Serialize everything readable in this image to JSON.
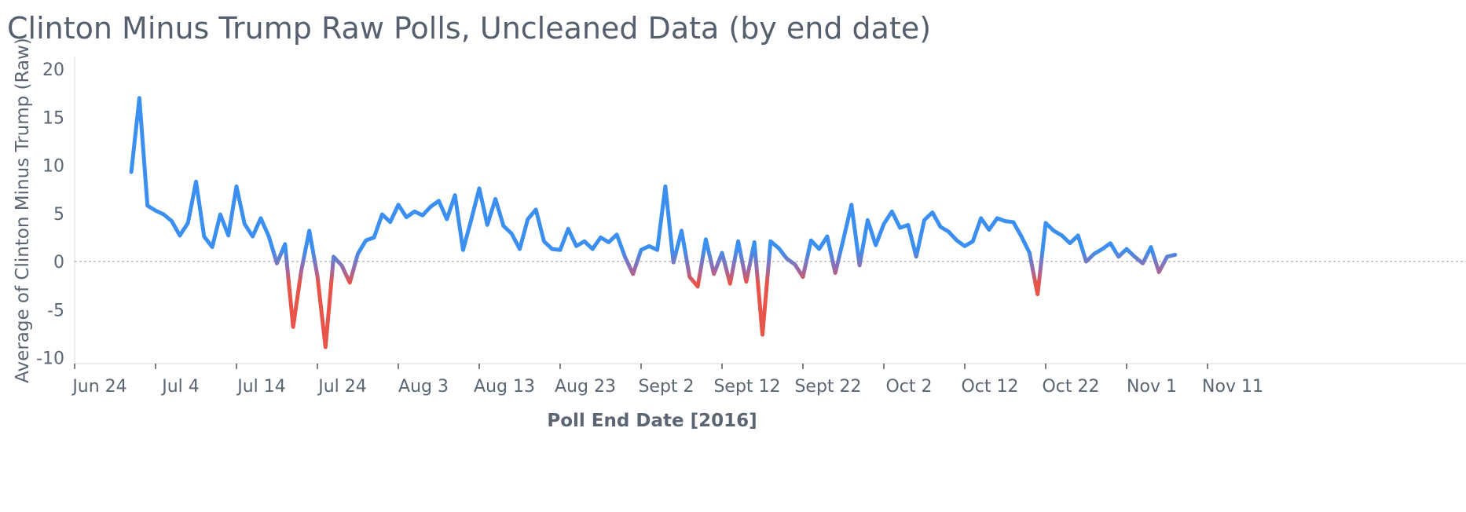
{
  "chart_data": {
    "type": "line",
    "title": "Clinton Minus Trump Raw Polls, Uncleaned Data (by end date)",
    "xlabel": "Poll End Date [2016]",
    "ylabel": "Average of Clinton Minus Trump (Raw)",
    "ylim": [
      -11,
      21
    ],
    "y_ticks": [
      20,
      15,
      10,
      5,
      0,
      -5,
      -10
    ],
    "y_tick_labels": [
      "20",
      "15",
      "10",
      "5",
      "0",
      "-5",
      "-10"
    ],
    "xlim": [
      "2016-06-21",
      "2016-11-12"
    ],
    "x_ticks": [
      "2016-06-24",
      "2016-07-04",
      "2016-07-14",
      "2016-07-24",
      "2016-08-03",
      "2016-08-13",
      "2016-08-23",
      "2016-09-02",
      "2016-09-12",
      "2016-09-22",
      "2016-10-02",
      "2016-10-12",
      "2016-10-22",
      "2016-11-01",
      "2016-11-11"
    ],
    "x_tick_labels": [
      "Jun 24",
      "Jul 4",
      "Jul 14",
      "Jul 24",
      "Aug 3",
      "Aug 13",
      "Aug 23",
      "Sept 2",
      "Sept 12",
      "Sept 22",
      "Oct 2",
      "Oct 12",
      "Oct 22",
      "Nov 1",
      "Nov 11"
    ],
    "reference_line": 0,
    "grid": false,
    "colors": {
      "positive": "#3b8ff0",
      "negative": "#e8544a",
      "axis": "#d8d8d8",
      "zero_line": "#9a9a9a",
      "text": "#5b6573"
    },
    "series": [
      {
        "points": [
          [
            "2016-07-01",
            9.3
          ],
          [
            "2016-07-02",
            17.0
          ],
          [
            "2016-07-03",
            5.8
          ],
          [
            "2016-07-04",
            5.3
          ],
          [
            "2016-07-05",
            4.9
          ],
          [
            "2016-07-06",
            4.2
          ],
          [
            "2016-07-07",
            2.7
          ],
          [
            "2016-07-08",
            4.0
          ],
          [
            "2016-07-09",
            8.3
          ],
          [
            "2016-07-10",
            2.6
          ],
          [
            "2016-07-11",
            1.5
          ],
          [
            "2016-07-12",
            4.9
          ],
          [
            "2016-07-13",
            2.7
          ],
          [
            "2016-07-14",
            7.8
          ],
          [
            "2016-07-15",
            3.9
          ],
          [
            "2016-07-16",
            2.6
          ],
          [
            "2016-07-17",
            4.5
          ],
          [
            "2016-07-18",
            2.6
          ],
          [
            "2016-07-19",
            -0.2
          ],
          [
            "2016-07-20",
            1.8
          ],
          [
            "2016-07-21",
            -6.8
          ],
          [
            "2016-07-22",
            -1.0
          ],
          [
            "2016-07-23",
            3.2
          ],
          [
            "2016-07-24",
            -1.5
          ],
          [
            "2016-07-25",
            -8.9
          ],
          [
            "2016-07-26",
            0.5
          ],
          [
            "2016-07-27",
            -0.4
          ],
          [
            "2016-07-28",
            -2.2
          ],
          [
            "2016-07-29",
            0.8
          ],
          [
            "2016-07-30",
            2.2
          ],
          [
            "2016-07-31",
            2.5
          ],
          [
            "2016-08-01",
            4.9
          ],
          [
            "2016-08-02",
            4.1
          ],
          [
            "2016-08-03",
            5.9
          ],
          [
            "2016-08-04",
            4.6
          ],
          [
            "2016-08-05",
            5.2
          ],
          [
            "2016-08-06",
            4.8
          ],
          [
            "2016-08-07",
            5.7
          ],
          [
            "2016-08-08",
            6.3
          ],
          [
            "2016-08-09",
            4.4
          ],
          [
            "2016-08-10",
            6.9
          ],
          [
            "2016-08-11",
            1.2
          ],
          [
            "2016-08-12",
            4.3
          ],
          [
            "2016-08-13",
            7.6
          ],
          [
            "2016-08-14",
            3.8
          ],
          [
            "2016-08-15",
            6.5
          ],
          [
            "2016-08-16",
            3.7
          ],
          [
            "2016-08-17",
            2.9
          ],
          [
            "2016-08-18",
            1.3
          ],
          [
            "2016-08-19",
            4.4
          ],
          [
            "2016-08-20",
            5.4
          ],
          [
            "2016-08-21",
            2.1
          ],
          [
            "2016-08-22",
            1.3
          ],
          [
            "2016-08-23",
            1.2
          ],
          [
            "2016-08-24",
            3.4
          ],
          [
            "2016-08-25",
            1.6
          ],
          [
            "2016-08-26",
            2.1
          ],
          [
            "2016-08-27",
            1.3
          ],
          [
            "2016-08-28",
            2.5
          ],
          [
            "2016-08-29",
            2.0
          ],
          [
            "2016-08-30",
            2.8
          ],
          [
            "2016-08-31",
            0.5
          ],
          [
            "2016-09-01",
            -1.3
          ],
          [
            "2016-09-02",
            1.2
          ],
          [
            "2016-09-03",
            1.6
          ],
          [
            "2016-09-04",
            1.2
          ],
          [
            "2016-09-05",
            7.8
          ],
          [
            "2016-09-06",
            -0.1
          ],
          [
            "2016-09-07",
            3.2
          ],
          [
            "2016-09-08",
            -1.6
          ],
          [
            "2016-09-09",
            -2.6
          ],
          [
            "2016-09-10",
            2.3
          ],
          [
            "2016-09-11",
            -1.3
          ],
          [
            "2016-09-12",
            0.9
          ],
          [
            "2016-09-13",
            -2.3
          ],
          [
            "2016-09-14",
            2.1
          ],
          [
            "2016-09-15",
            -2.1
          ],
          [
            "2016-09-16",
            2.0
          ],
          [
            "2016-09-17",
            -7.6
          ],
          [
            "2016-09-18",
            2.1
          ],
          [
            "2016-09-19",
            1.4
          ],
          [
            "2016-09-20",
            0.3
          ],
          [
            "2016-09-21",
            -0.3
          ],
          [
            "2016-09-22",
            -1.6
          ],
          [
            "2016-09-23",
            2.2
          ],
          [
            "2016-09-24",
            1.3
          ],
          [
            "2016-09-25",
            2.6
          ],
          [
            "2016-09-26",
            -1.2
          ],
          [
            "2016-09-27",
            2.3
          ],
          [
            "2016-09-28",
            5.9
          ],
          [
            "2016-09-29",
            -0.4
          ],
          [
            "2016-09-30",
            4.3
          ],
          [
            "2016-10-01",
            1.7
          ],
          [
            "2016-10-02",
            3.9
          ],
          [
            "2016-10-03",
            5.2
          ],
          [
            "2016-10-04",
            3.5
          ],
          [
            "2016-10-05",
            3.8
          ],
          [
            "2016-10-06",
            0.5
          ],
          [
            "2016-10-07",
            4.3
          ],
          [
            "2016-10-08",
            5.1
          ],
          [
            "2016-10-09",
            3.6
          ],
          [
            "2016-10-10",
            3.1
          ],
          [
            "2016-10-11",
            2.2
          ],
          [
            "2016-10-12",
            1.6
          ],
          [
            "2016-10-13",
            2.1
          ],
          [
            "2016-10-14",
            4.5
          ],
          [
            "2016-10-15",
            3.3
          ],
          [
            "2016-10-16",
            4.5
          ],
          [
            "2016-10-17",
            4.2
          ],
          [
            "2016-10-18",
            4.1
          ],
          [
            "2016-10-19",
            2.6
          ],
          [
            "2016-10-20",
            0.9
          ],
          [
            "2016-10-21",
            -3.4
          ],
          [
            "2016-10-22",
            4.0
          ],
          [
            "2016-10-23",
            3.2
          ],
          [
            "2016-10-24",
            2.7
          ],
          [
            "2016-10-25",
            1.9
          ],
          [
            "2016-10-26",
            2.7
          ],
          [
            "2016-10-27",
            0.0
          ],
          [
            "2016-10-28",
            0.8
          ],
          [
            "2016-10-29",
            1.3
          ],
          [
            "2016-10-30",
            1.9
          ],
          [
            "2016-10-31",
            0.5
          ],
          [
            "2016-11-01",
            1.3
          ],
          [
            "2016-11-02",
            0.5
          ],
          [
            "2016-11-03",
            -0.2
          ],
          [
            "2016-11-04",
            1.5
          ],
          [
            "2016-11-05",
            -1.1
          ],
          [
            "2016-11-06",
            0.5
          ],
          [
            "2016-11-07",
            0.7
          ]
        ]
      }
    ]
  }
}
